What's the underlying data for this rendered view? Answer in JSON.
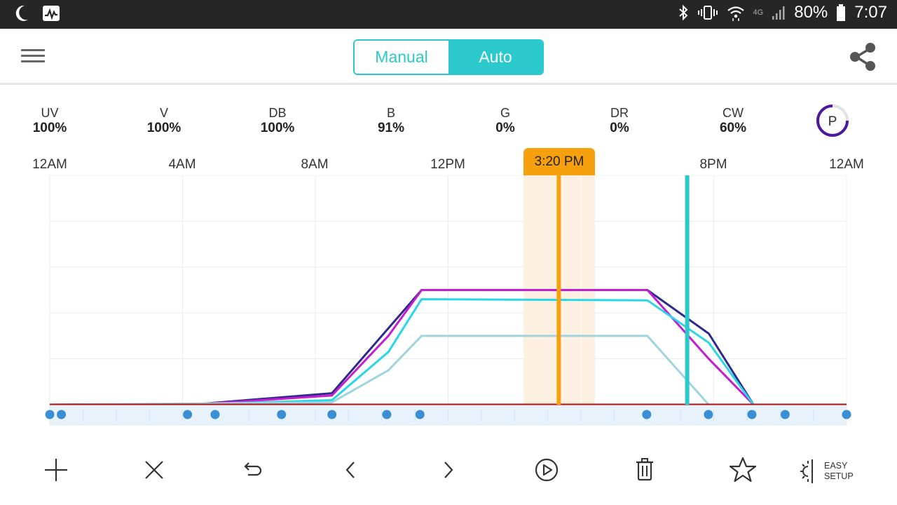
{
  "status_bar": {
    "icons_left": [
      "moon-icon",
      "activity-monitor-icon"
    ],
    "icons_right": [
      "bluetooth-icon",
      "vibrate-icon",
      "wifi-icon",
      "signal-icon",
      "battery-icon"
    ],
    "network": "4G",
    "battery": "80%",
    "time": "7:07"
  },
  "header": {
    "menu_icon": "hamburger-menu-icon",
    "mode_manual": "Manual",
    "mode_auto": "Auto",
    "active_mode": "Auto",
    "share_icon": "share-icon",
    "accent_color": "#2cc9cc"
  },
  "channels": [
    {
      "name": "UV",
      "value": "100%"
    },
    {
      "name": "V",
      "value": "100%"
    },
    {
      "name": "DB",
      "value": "100%"
    },
    {
      "name": "B",
      "value": "91%"
    },
    {
      "name": "G",
      "value": "0%"
    },
    {
      "name": "DR",
      "value": "0%"
    },
    {
      "name": "CW",
      "value": "60%"
    }
  ],
  "profile_button": {
    "label": "P",
    "color": "#4b1aa0"
  },
  "time_axis": [
    "12AM",
    "4AM",
    "8AM",
    "12PM",
    "8PM",
    "12AM"
  ],
  "current_time": "3:20 PM",
  "chart_data": {
    "type": "line",
    "x_unit": "hour of day",
    "xlim": [
      0,
      24
    ],
    "ylim": [
      0,
      100
    ],
    "current_time_hours": 15.333,
    "current_time_color": "#f7a00d",
    "marker_time_hours": 19.2,
    "marker_color": "#2cc9cc",
    "series": [
      {
        "color": "#2e2a8c",
        "x": [
          0,
          4.5,
          8.5,
          11.2,
          18.0,
          19.85,
          21.2,
          24
        ],
        "y": [
          0,
          0.3,
          5,
          50,
          50,
          31,
          0,
          0
        ]
      },
      {
        "color": "#c51bd1",
        "x": [
          0,
          4.5,
          8.5,
          10.2,
          11.2,
          18.0,
          19.85,
          21.2,
          24
        ],
        "y": [
          0,
          0.2,
          4,
          30,
          50,
          50,
          20,
          0,
          0
        ]
      },
      {
        "color": "#28d6e6",
        "x": [
          0,
          4.5,
          8.5,
          10.2,
          11.2,
          18.0,
          19.85,
          21.2,
          24
        ],
        "y": [
          0,
          0.2,
          2,
          23,
          46,
          45.5,
          27,
          0,
          0
        ]
      },
      {
        "color": "#9fd3dd",
        "x": [
          0,
          8.5,
          10.2,
          11.2,
          18.0,
          19.85,
          24
        ],
        "y": [
          0,
          1,
          15,
          30,
          30,
          0,
          0
        ]
      },
      {
        "color": "#b01010",
        "x": [
          0,
          24
        ],
        "y": [
          0,
          0
        ]
      }
    ],
    "control_points_hours": [
      0,
      0.35,
      4.15,
      4.98,
      6.98,
      8.5,
      10.15,
      11.15,
      17.98,
      19.84,
      21.15,
      22.15,
      24
    ],
    "control_point_color": "#3a8fd4"
  },
  "toolbar": {
    "items": [
      "add-icon",
      "close-icon",
      "undo-icon",
      "chevron-left-icon",
      "chevron-right-icon",
      "play-circle-icon",
      "trash-icon",
      "star-icon"
    ],
    "easy_setup_line1": "EASY",
    "easy_setup_line2": "SETUP",
    "easy_setup_icon": "easy-setup-sun-icon"
  }
}
